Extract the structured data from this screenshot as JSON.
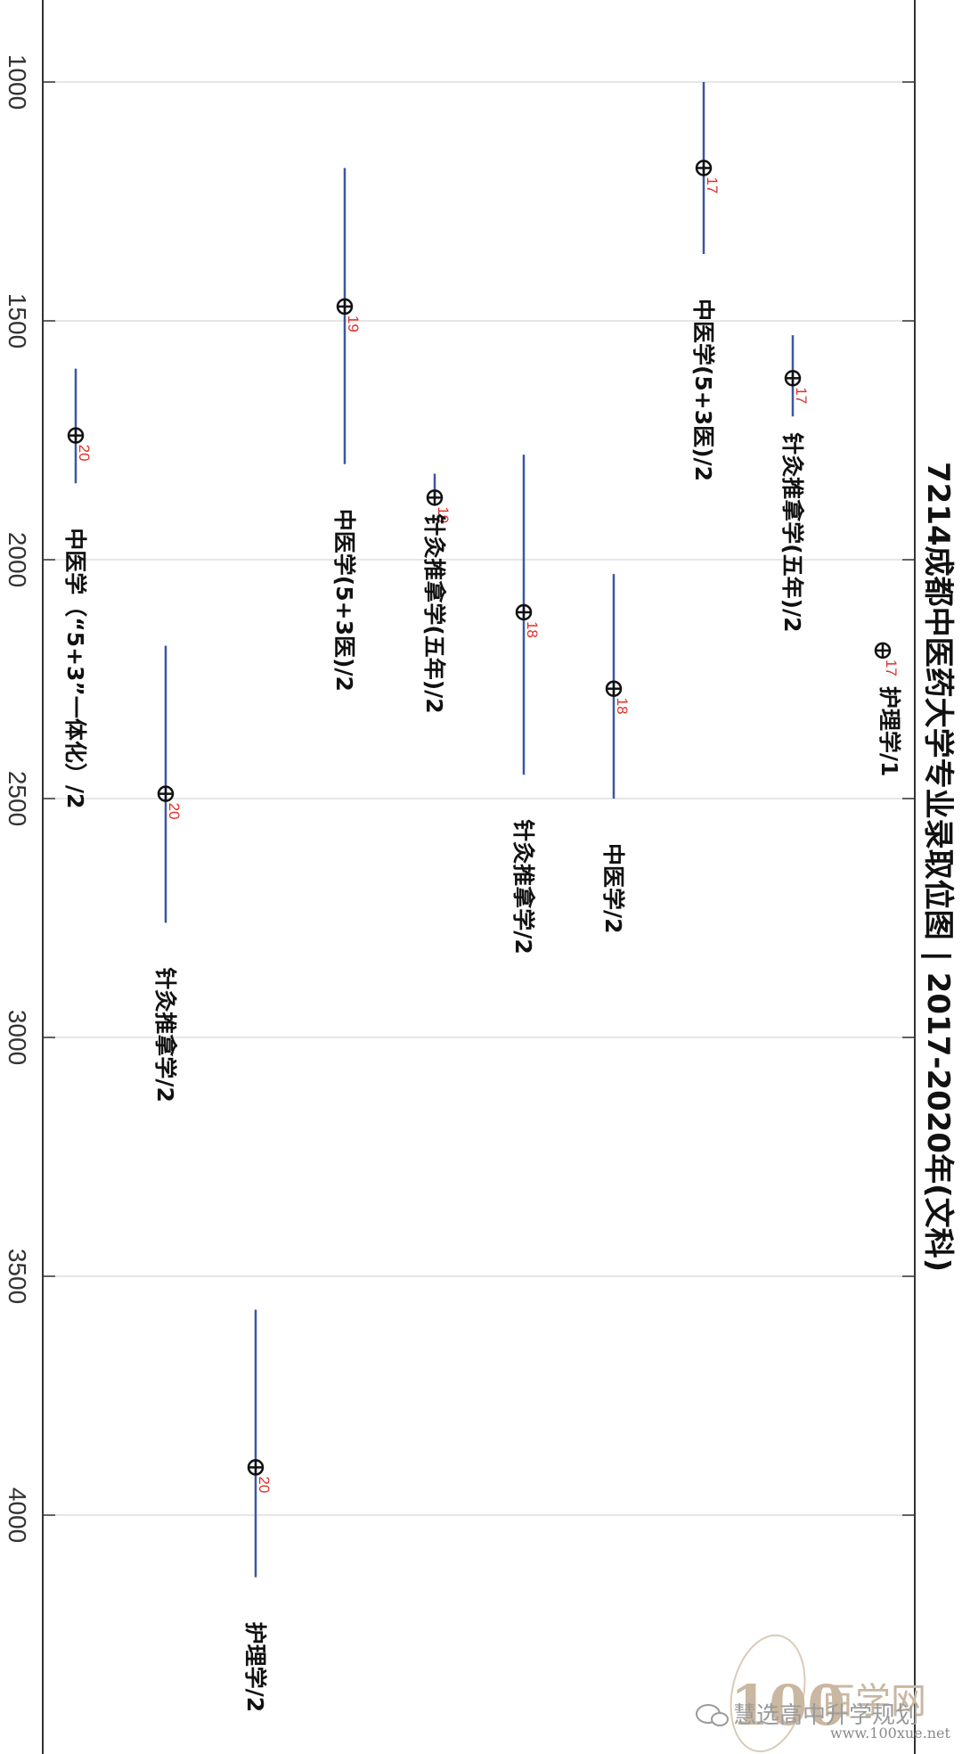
{
  "chart_data": {
    "type": "scatter",
    "title": "7214成都中医药大学专业录取位图 | 2017-2020年(文科)",
    "orientation": "rotated-90-clockwise",
    "ylim": [
      830,
      4500
    ],
    "y_ticks": [
      1000,
      1500,
      2000,
      2500,
      3000,
      3500,
      4000
    ],
    "grid": true,
    "series": [
      {
        "category": "中医学（“5+3”一体化）/2",
        "center": 1740,
        "low": 1600,
        "high": 1840,
        "year_label": "20"
      },
      {
        "category": "针灸推拿学/2",
        "center": 2490,
        "low": 2180,
        "high": 2760,
        "year_label": "20"
      },
      {
        "category": "护理学/2",
        "center": 3900,
        "low": 3570,
        "high": 4130,
        "year_label": "20"
      },
      {
        "category": "中医学(5+3医)/2",
        "center": 1470,
        "low": 1180,
        "high": 1800,
        "year_label": "19"
      },
      {
        "category": "针灸推拿学(五年)/2",
        "center": 1870,
        "low": 1820,
        "high": 1870,
        "year_label": "19"
      },
      {
        "category": "针灸推拿学/2",
        "center": 2110,
        "low": 1780,
        "high": 2450,
        "year_label": "18"
      },
      {
        "category": "中医学/2",
        "center": 2270,
        "low": 2030,
        "high": 2500,
        "year_label": "18"
      },
      {
        "category": "中医学(5+3医)/2",
        "center": 1180,
        "low": 1000,
        "high": 1360,
        "year_label": "17"
      },
      {
        "category": "针灸推拿学(五年)/2",
        "center": 1620,
        "low": 1530,
        "high": 1700,
        "year_label": "17"
      },
      {
        "category": "护理学/1",
        "center": 2190,
        "low": 2190,
        "high": 2190,
        "year_label": "17"
      }
    ]
  },
  "watermark": {
    "logo_number": "100",
    "logo_text": "百学网",
    "url": "www.100xue.net",
    "wechat_text": "慧选高中升学规划"
  },
  "colors": {
    "range_line": "#3a57a0",
    "year_label": "#e0302a",
    "grid": "#dddddd",
    "frame": "#333333"
  }
}
